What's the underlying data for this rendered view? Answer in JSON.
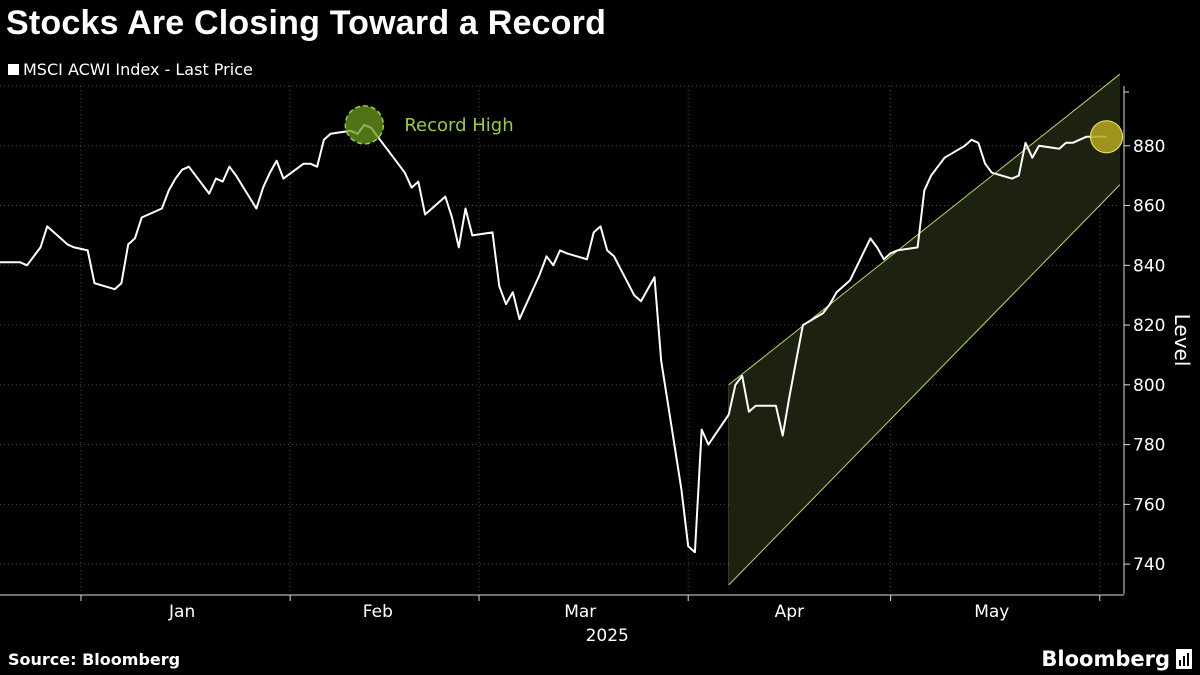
{
  "title": "Stocks Are Closing Toward a Record",
  "legend_label": "MSCI ACWI Index - Last Price",
  "source": "Source: Bloomberg",
  "brand": "Bloomberg",
  "brand_icon": "bloomberg-chart-icon",
  "colors": {
    "background": "#000000",
    "line": "#ffffff",
    "grid": "#4a4a4a",
    "channel_fill": "#1e2410",
    "channel_edge": "#b8d860",
    "record_marker": "#6a9a1e",
    "record_text": "#9ccc3a",
    "current_marker": "#b5a820"
  },
  "chart_data": {
    "type": "line",
    "title": "Stocks Are Closing Toward a Record",
    "series": [
      {
        "name": "MSCI ACWI Index - Last Price",
        "x": [
          "2024-12-20",
          "2024-12-23",
          "2024-12-24",
          "2024-12-26",
          "2024-12-27",
          "2024-12-30",
          "2024-12-31",
          "2025-01-02",
          "2025-01-03",
          "2025-01-06",
          "2025-01-07",
          "2025-01-08",
          "2025-01-09",
          "2025-01-10",
          "2025-01-13",
          "2025-01-14",
          "2025-01-15",
          "2025-01-16",
          "2025-01-17",
          "2025-01-20",
          "2025-01-21",
          "2025-01-22",
          "2025-01-23",
          "2025-01-24",
          "2025-01-27",
          "2025-01-28",
          "2025-01-29",
          "2025-01-30",
          "2025-01-31",
          "2025-02-03",
          "2025-02-04",
          "2025-02-05",
          "2025-02-06",
          "2025-02-07",
          "2025-02-10",
          "2025-02-11",
          "2025-02-12",
          "2025-02-13",
          "2025-02-14",
          "2025-02-17",
          "2025-02-18",
          "2025-02-19",
          "2025-02-20",
          "2025-02-21",
          "2025-02-24",
          "2025-02-25",
          "2025-02-26",
          "2025-02-27",
          "2025-02-28",
          "2025-03-03",
          "2025-03-04",
          "2025-03-05",
          "2025-03-06",
          "2025-03-07",
          "2025-03-10",
          "2025-03-11",
          "2025-03-12",
          "2025-03-13",
          "2025-03-14",
          "2025-03-17",
          "2025-03-18",
          "2025-03-19",
          "2025-03-20",
          "2025-03-21",
          "2025-03-24",
          "2025-03-25",
          "2025-03-26",
          "2025-03-27",
          "2025-03-28",
          "2025-03-31",
          "2025-04-01",
          "2025-04-02",
          "2025-04-03",
          "2025-04-04",
          "2025-04-07",
          "2025-04-08",
          "2025-04-09",
          "2025-04-10",
          "2025-04-11",
          "2025-04-14",
          "2025-04-15",
          "2025-04-16",
          "2025-04-17",
          "2025-04-18",
          "2025-04-21",
          "2025-04-22",
          "2025-04-23",
          "2025-04-24",
          "2025-04-25",
          "2025-04-28",
          "2025-04-29",
          "2025-04-30",
          "2025-05-01",
          "2025-05-02",
          "2025-05-05",
          "2025-05-06",
          "2025-05-07",
          "2025-05-08",
          "2025-05-09",
          "2025-05-12",
          "2025-05-13",
          "2025-05-14",
          "2025-05-15",
          "2025-05-16",
          "2025-05-19",
          "2025-05-20",
          "2025-05-21",
          "2025-05-22",
          "2025-05-23",
          "2025-05-26",
          "2025-05-27",
          "2025-05-28",
          "2025-05-29",
          "2025-05-30",
          "2025-06-02"
        ],
        "values": [
          841,
          841,
          840,
          846,
          853,
          847,
          846,
          845,
          834,
          832,
          834,
          847,
          849,
          856,
          859,
          865,
          869,
          872,
          873,
          864,
          869,
          868,
          873,
          870,
          859,
          866,
          871,
          875,
          869,
          874,
          874,
          873,
          882,
          884,
          885,
          884,
          887,
          886,
          883,
          874,
          871,
          866,
          868,
          857,
          863,
          856,
          846,
          859,
          850,
          851,
          833,
          827,
          831,
          822,
          837,
          843,
          840,
          845,
          844,
          842,
          851,
          853,
          845,
          843,
          830,
          828,
          832,
          836,
          808,
          765,
          746,
          744,
          785,
          780,
          790,
          800,
          803,
          791,
          793,
          793,
          783,
          796,
          808,
          820,
          824,
          827,
          831,
          833,
          835,
          849,
          846,
          842,
          844,
          845,
          846,
          865,
          870,
          873,
          876,
          880,
          882,
          881,
          874,
          871,
          869,
          870,
          881,
          876,
          880,
          879,
          881,
          881,
          882,
          883,
          883
        ]
      }
    ],
    "x_ticks": [
      "Jan",
      "Feb",
      "Mar",
      "Apr",
      "May"
    ],
    "x_year_label": "2025",
    "y_ticks": [
      740,
      760,
      780,
      800,
      820,
      840,
      860,
      880
    ],
    "ylabel": "Level",
    "ylim": [
      730,
      900
    ],
    "grid": true,
    "annotations": [
      {
        "label": "Record High",
        "x": "2025-02-12",
        "y": 887
      },
      {
        "label": "",
        "x": "2025-06-02",
        "y": 883
      }
    ],
    "channel": {
      "start": {
        "x": "2025-04-07",
        "upper": 800,
        "lower": 733
      },
      "end": {
        "x": "2025-06-04",
        "upper": 904,
        "lower": 867
      }
    }
  }
}
